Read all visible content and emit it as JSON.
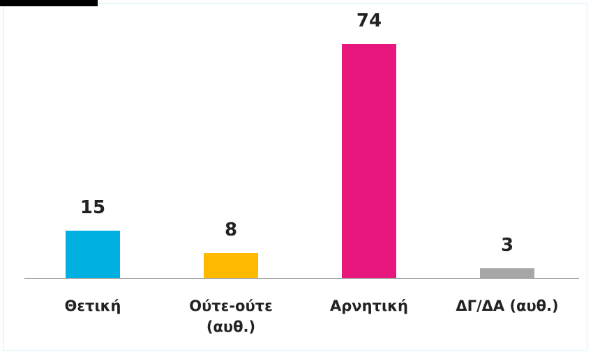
{
  "chart_data": {
    "type": "bar",
    "categories": [
      "Θετική",
      "Ούτε-ούτε (αυθ.)",
      "Αρνητική",
      "ΔΓ/ΔΑ (αυθ.)"
    ],
    "values": [
      15,
      8,
      74,
      3
    ],
    "colors": [
      "#00b0e0",
      "#ffba00",
      "#e8177d",
      "#a6a6a6"
    ]
  }
}
